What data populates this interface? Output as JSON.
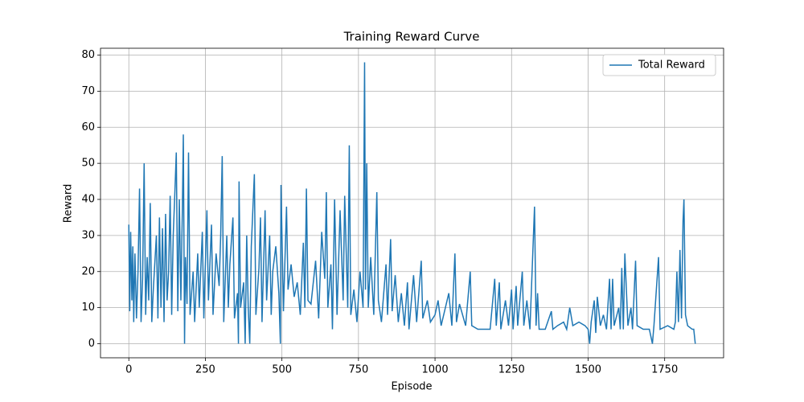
{
  "chart_data": {
    "type": "line",
    "title": "Training Reward Curve",
    "x_label": "Episode",
    "y_label": "Reward",
    "xlim": [
      -92.5,
      1942.5
    ],
    "ylim": [
      -3.9,
      81.9
    ],
    "xticks": [
      0,
      250,
      500,
      750,
      1000,
      1250,
      1500,
      1750
    ],
    "yticks": [
      0,
      10,
      20,
      30,
      40,
      50,
      60,
      70,
      80
    ],
    "grid": true,
    "legend": "upper right",
    "x": [
      0,
      3,
      6,
      10,
      13,
      16,
      20,
      25,
      30,
      35,
      40,
      45,
      50,
      55,
      60,
      65,
      70,
      75,
      80,
      90,
      95,
      100,
      105,
      110,
      115,
      120,
      125,
      130,
      135,
      140,
      145,
      150,
      155,
      160,
      165,
      170,
      175,
      178,
      182,
      185,
      190,
      195,
      200,
      210,
      215,
      225,
      230,
      240,
      245,
      255,
      260,
      270,
      275,
      285,
      295,
      300,
      305,
      310,
      320,
      325,
      330,
      340,
      345,
      355,
      358,
      360,
      365,
      375,
      380,
      385,
      390,
      395,
      400,
      410,
      415,
      425,
      430,
      435,
      445,
      450,
      460,
      465,
      470,
      480,
      490,
      495,
      497,
      505,
      515,
      520,
      530,
      540,
      550,
      560,
      570,
      575,
      580,
      585,
      595,
      610,
      620,
      630,
      640,
      645,
      650,
      660,
      665,
      672,
      680,
      690,
      700,
      705,
      715,
      720,
      725,
      735,
      745,
      755,
      765,
      770,
      773,
      777,
      782,
      790,
      800,
      810,
      815,
      825,
      840,
      845,
      855,
      860,
      870,
      880,
      890,
      900,
      910,
      915,
      930,
      940,
      955,
      960,
      975,
      985,
      1000,
      1010,
      1020,
      1045,
      1055,
      1065,
      1070,
      1080,
      1100,
      1115,
      1120,
      1140,
      1160,
      1180,
      1195,
      1200,
      1210,
      1215,
      1230,
      1240,
      1250,
      1255,
      1265,
      1270,
      1285,
      1290,
      1300,
      1310,
      1325,
      1330,
      1335,
      1340,
      1360,
      1380,
      1385,
      1400,
      1420,
      1430,
      1440,
      1450,
      1470,
      1490,
      1500,
      1505,
      1510,
      1520,
      1525,
      1530,
      1540,
      1550,
      1560,
      1570,
      1575,
      1580,
      1585,
      1600,
      1605,
      1610,
      1615,
      1620,
      1630,
      1640,
      1645,
      1655,
      1660,
      1680,
      1700,
      1710,
      1715,
      1730,
      1735,
      1760,
      1780,
      1785,
      1790,
      1795,
      1800,
      1805,
      1810,
      1813,
      1818,
      1825,
      1840,
      1845,
      1850
    ],
    "series": [
      {
        "name": "Total Reward",
        "color": "#1f77b4",
        "values": [
          33,
          9,
          31,
          12,
          27,
          6,
          25,
          7,
          20,
          43,
          6,
          18,
          50,
          8,
          24,
          12,
          39,
          6,
          15,
          30,
          7,
          35,
          10,
          32,
          6,
          36,
          12,
          20,
          41,
          8,
          30,
          41,
          53,
          9,
          40,
          12,
          38,
          58,
          0,
          24,
          11,
          53,
          8,
          20,
          6,
          25,
          10,
          31,
          7,
          37,
          12,
          33,
          8,
          25,
          16,
          30,
          52,
          6,
          30,
          10,
          22,
          35,
          7,
          14,
          0,
          45,
          10,
          17,
          0,
          30,
          10,
          0,
          27,
          47,
          8,
          21,
          35,
          6,
          37,
          12,
          30,
          8,
          20,
          27,
          14,
          0,
          44,
          9,
          38,
          15,
          22,
          13,
          17,
          8,
          28,
          10,
          43,
          12,
          11,
          23,
          7,
          31,
          18,
          42,
          10,
          22,
          4,
          40,
          8,
          37,
          12,
          41,
          10,
          55,
          8,
          15,
          6,
          20,
          10,
          78,
          15,
          50,
          10,
          24,
          8,
          42,
          12,
          6,
          22,
          8,
          29,
          9,
          19,
          6,
          14,
          5,
          17,
          4,
          19,
          6,
          23,
          7,
          12,
          6,
          8,
          12,
          5,
          14,
          5,
          25,
          6,
          11,
          5,
          20,
          5,
          4,
          4,
          4,
          18,
          5,
          17,
          4,
          12,
          5,
          15,
          4,
          16,
          5,
          20,
          5,
          12,
          4,
          38,
          5,
          14,
          4,
          4,
          9,
          4,
          5,
          6,
          4,
          10,
          5,
          6,
          5,
          4,
          0,
          6,
          12,
          3,
          13,
          5,
          8,
          4,
          18,
          4,
          18,
          5,
          10,
          4,
          21,
          4,
          25,
          5,
          10,
          4,
          23,
          5,
          4,
          4,
          0,
          5,
          24,
          4,
          5,
          4,
          6,
          20,
          6,
          26,
          7,
          34,
          40,
          8,
          5,
          4,
          4,
          0
        ]
      }
    ]
  }
}
